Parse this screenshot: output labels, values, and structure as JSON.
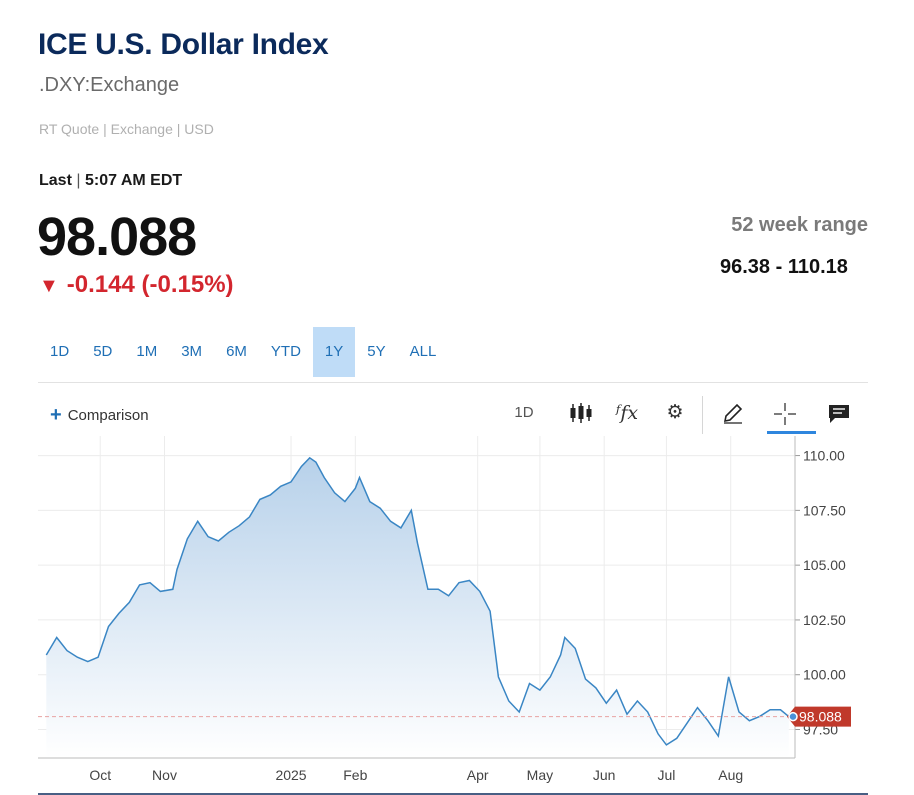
{
  "header": {
    "title": "ICE U.S. Dollar Index",
    "symbol": ".DXY:Exchange",
    "quote_type": "RT Quote | Exchange | USD",
    "last_label": "Last",
    "last_time": "5:07 AM EDT",
    "price": "98.088",
    "change_arrow": "▼",
    "change": "-0.144 (-0.15%)",
    "range_label": "52 week range",
    "range_value": "96.38 - 110.18",
    "colors": {
      "title": "#0b2a5b",
      "down": "#d3262e",
      "accent": "#1f6fb5"
    }
  },
  "tabs": [
    {
      "label": "1D",
      "active": false
    },
    {
      "label": "5D",
      "active": false
    },
    {
      "label": "1M",
      "active": false
    },
    {
      "label": "3M",
      "active": false
    },
    {
      "label": "6M",
      "active": false
    },
    {
      "label": "YTD",
      "active": false
    },
    {
      "label": "1Y",
      "active": true
    },
    {
      "label": "5Y",
      "active": false
    },
    {
      "label": "ALL",
      "active": false
    }
  ],
  "toolbar": {
    "comparison_label": "Comparison",
    "interval_label": "1D",
    "icons": [
      "candlestick-icon",
      "function-icon",
      "gear-icon",
      "pencil-icon",
      "crosshair-icon",
      "comment-icon"
    ]
  },
  "chart_data": {
    "type": "area",
    "title": "",
    "xlabel": "",
    "ylabel": "",
    "y_ticks": [
      "110.00",
      "107.50",
      "105.00",
      "102.50",
      "100.00",
      "97.50"
    ],
    "x_ticks": [
      "Oct",
      "Nov",
      "2025",
      "Feb",
      "Apr",
      "May",
      "Jun",
      "Jul",
      "Aug"
    ],
    "ylim": [
      96.2,
      110.3
    ],
    "last_value_label": "98.088",
    "last_value": 98.088,
    "grid": true,
    "colors": {
      "line": "#3a86c4",
      "fill_top": "#b7d1ea",
      "fill_bottom": "#ffffff",
      "last_tag": "#c0392b"
    },
    "x": [
      "2024-09-05",
      "2024-09-10",
      "2024-09-15",
      "2024-09-20",
      "2024-09-25",
      "2024-09-30",
      "2024-10-05",
      "2024-10-10",
      "2024-10-15",
      "2024-10-20",
      "2024-10-25",
      "2024-10-30",
      "2024-11-05",
      "2024-11-07",
      "2024-11-12",
      "2024-11-17",
      "2024-11-22",
      "2024-11-27",
      "2024-12-02",
      "2024-12-07",
      "2024-12-12",
      "2024-12-17",
      "2024-12-22",
      "2024-12-27",
      "2025-01-01",
      "2025-01-06",
      "2025-01-10",
      "2025-01-13",
      "2025-01-17",
      "2025-01-22",
      "2025-01-27",
      "2025-02-01",
      "2025-02-03",
      "2025-02-08",
      "2025-02-13",
      "2025-02-18",
      "2025-02-23",
      "2025-02-28",
      "2025-03-03",
      "2025-03-08",
      "2025-03-13",
      "2025-03-18",
      "2025-03-23",
      "2025-03-28",
      "2025-04-02",
      "2025-04-07",
      "2025-04-11",
      "2025-04-16",
      "2025-04-21",
      "2025-04-26",
      "2025-05-01",
      "2025-05-06",
      "2025-05-11",
      "2025-05-13",
      "2025-05-18",
      "2025-05-23",
      "2025-05-28",
      "2025-06-02",
      "2025-06-07",
      "2025-06-12",
      "2025-06-17",
      "2025-06-22",
      "2025-06-27",
      "2025-07-01",
      "2025-07-06",
      "2025-07-11",
      "2025-07-16",
      "2025-07-21",
      "2025-07-26",
      "2025-07-31",
      "2025-08-05",
      "2025-08-10",
      "2025-08-15",
      "2025-08-20",
      "2025-08-25",
      "2025-08-29"
    ],
    "series": [
      {
        "name": "",
        "values": [
          100.9,
          101.7,
          101.1,
          100.8,
          100.6,
          100.8,
          102.2,
          102.8,
          103.3,
          104.1,
          104.2,
          103.8,
          103.9,
          104.8,
          106.2,
          107.0,
          106.3,
          106.1,
          106.5,
          106.8,
          107.2,
          108.0,
          108.2,
          108.6,
          108.8,
          109.5,
          109.9,
          109.7,
          109.0,
          108.3,
          107.9,
          108.5,
          109.0,
          107.9,
          107.6,
          107.0,
          106.7,
          107.5,
          106.0,
          103.9,
          103.9,
          103.6,
          104.2,
          104.3,
          103.8,
          102.9,
          99.9,
          98.8,
          98.3,
          99.6,
          99.3,
          99.9,
          100.9,
          101.7,
          101.2,
          99.8,
          99.4,
          98.7,
          99.3,
          98.2,
          98.8,
          98.3,
          97.3,
          96.8,
          97.1,
          97.8,
          98.5,
          97.9,
          97.2,
          99.9,
          98.3,
          97.9,
          98.1,
          98.4,
          98.4,
          98.088
        ]
      }
    ]
  }
}
